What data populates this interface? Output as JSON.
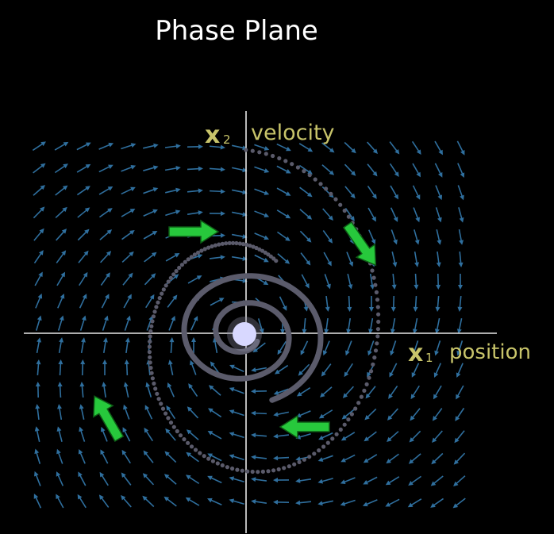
{
  "title": "Phase Plane",
  "axes": {
    "x_symbol": "x",
    "x_subscript": "1",
    "x_label": "position",
    "y_symbol": "x",
    "y_subscript": "2",
    "y_label": "velocity"
  },
  "colors": {
    "background": "#000000",
    "title": "#ffffff",
    "axis": "#e8e8e8",
    "axis_label": "#c8c46a",
    "field_arrow": "#2f6f9e",
    "trajectory": "#5a5a6a",
    "flow_arrow": "#27c83c",
    "equilibrium": "#d8d8ff"
  },
  "icons": {
    "flow_arrow": "green-direction-arrow-icon",
    "equilibrium": "stable-focus-point-icon"
  }
}
